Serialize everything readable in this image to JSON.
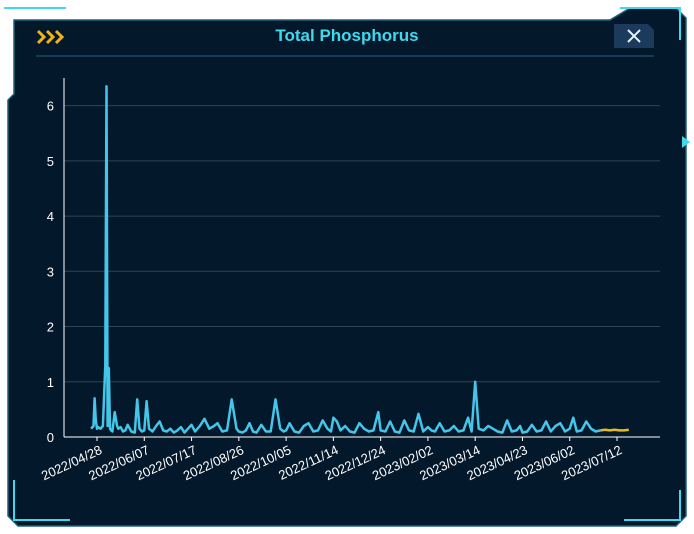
{
  "window": {
    "title": "Total Phosphorus",
    "accent": "#3fd9ee",
    "background": "#04182b"
  },
  "icons": {
    "chevrons": "triple-chevron-right-icon",
    "close": "close-icon"
  },
  "chart_data": {
    "type": "line",
    "title": "Total Phosphorus",
    "xlabel": "",
    "ylabel": "",
    "x_tick_labels": [
      "2022/04/28",
      "2022/06/07",
      "2022/07/17",
      "2022/08/26",
      "2022/10/05",
      "2022/11/14",
      "2022/12/24",
      "2023/02/02",
      "2023/03/14",
      "2023/04/23",
      "2023/06/02",
      "2023/07/12"
    ],
    "y_tick_labels": [
      "0",
      "1",
      "2",
      "3",
      "4",
      "5",
      "6"
    ],
    "ylim": [
      0,
      6.5
    ],
    "grid": "horizontal",
    "series": [
      {
        "color": "#43c6ea",
        "x": [
          "2022/04/23",
          "2022/04/25",
          "2022/04/26",
          "2022/04/27",
          "2022/04/28",
          "2022/04/29",
          "2022/05/01",
          "2022/05/03",
          "2022/05/05",
          "2022/05/06",
          "2022/05/07",
          "2022/05/08",
          "2022/05/09",
          "2022/05/10",
          "2022/05/11",
          "2022/05/13",
          "2022/05/15",
          "2022/05/16",
          "2022/05/18",
          "2022/05/20",
          "2022/05/22",
          "2022/05/24",
          "2022/05/27",
          "2022/05/30",
          "2022/06/01",
          "2022/06/03",
          "2022/06/05",
          "2022/06/07",
          "2022/06/09",
          "2022/06/11",
          "2022/06/14",
          "2022/06/17",
          "2022/06/20",
          "2022/06/23",
          "2022/06/26",
          "2022/06/29",
          "2022/07/02",
          "2022/07/05",
          "2022/07/08",
          "2022/07/11",
          "2022/07/14",
          "2022/07/17",
          "2022/07/20",
          "2022/07/24",
          "2022/07/28",
          "2022/08/01",
          "2022/08/05",
          "2022/08/08",
          "2022/08/12",
          "2022/08/16",
          "2022/08/20",
          "2022/08/24",
          "2022/08/26",
          "2022/08/29",
          "2022/09/01",
          "2022/09/04",
          "2022/09/07",
          "2022/09/10",
          "2022/09/14",
          "2022/09/18",
          "2022/09/22",
          "2022/09/26",
          "2022/09/30",
          "2022/10/03",
          "2022/10/05",
          "2022/10/08",
          "2022/10/12",
          "2022/10/16",
          "2022/10/20",
          "2022/10/24",
          "2022/10/28",
          "2022/11/01",
          "2022/11/05",
          "2022/11/09",
          "2022/11/12",
          "2022/11/14",
          "2022/11/17",
          "2022/11/20",
          "2022/11/24",
          "2022/11/28",
          "2022/12/02",
          "2022/12/06",
          "2022/12/10",
          "2022/12/14",
          "2022/12/18",
          "2022/12/22",
          "2022/12/24",
          "2022/12/28",
          "2023/01/01",
          "2023/01/05",
          "2023/01/09",
          "2023/01/13",
          "2023/01/17",
          "2023/01/21",
          "2023/01/25",
          "2023/01/29",
          "2023/02/02",
          "2023/02/05",
          "2023/02/08",
          "2023/02/12",
          "2023/02/16",
          "2023/02/20",
          "2023/02/24",
          "2023/02/28",
          "2023/03/04",
          "2023/03/08",
          "2023/03/11",
          "2023/03/14",
          "2023/03/17",
          "2023/03/21",
          "2023/03/25",
          "2023/03/29",
          "2023/04/02",
          "2023/04/06",
          "2023/04/10",
          "2023/04/14",
          "2023/04/18",
          "2023/04/21",
          "2023/04/23",
          "2023/04/27",
          "2023/05/01",
          "2023/05/05",
          "2023/05/09",
          "2023/05/13",
          "2023/05/17",
          "2023/05/21",
          "2023/05/25",
          "2023/05/29",
          "2023/06/02",
          "2023/06/05",
          "2023/06/08",
          "2023/06/12",
          "2023/06/16",
          "2023/06/20",
          "2023/06/24",
          "2023/06/28"
        ],
        "values": [
          0.15,
          0.2,
          0.7,
          0.3,
          0.15,
          0.18,
          0.15,
          0.2,
          1.3,
          6.35,
          0.2,
          1.25,
          0.15,
          0.12,
          0.1,
          0.45,
          0.2,
          0.15,
          0.18,
          0.1,
          0.12,
          0.22,
          0.1,
          0.08,
          0.68,
          0.15,
          0.1,
          0.12,
          0.65,
          0.15,
          0.1,
          0.2,
          0.28,
          0.12,
          0.1,
          0.15,
          0.08,
          0.12,
          0.18,
          0.08,
          0.15,
          0.22,
          0.1,
          0.2,
          0.33,
          0.15,
          0.2,
          0.25,
          0.1,
          0.12,
          0.68,
          0.15,
          0.1,
          0.08,
          0.12,
          0.25,
          0.1,
          0.08,
          0.22,
          0.1,
          0.1,
          0.68,
          0.15,
          0.1,
          0.12,
          0.25,
          0.1,
          0.08,
          0.2,
          0.25,
          0.1,
          0.12,
          0.3,
          0.15,
          0.1,
          0.35,
          0.28,
          0.12,
          0.2,
          0.1,
          0.08,
          0.25,
          0.15,
          0.1,
          0.12,
          0.45,
          0.12,
          0.1,
          0.28,
          0.1,
          0.08,
          0.3,
          0.12,
          0.1,
          0.42,
          0.1,
          0.18,
          0.12,
          0.1,
          0.25,
          0.1,
          0.12,
          0.2,
          0.1,
          0.12,
          0.35,
          0.1,
          1.0,
          0.15,
          0.12,
          0.2,
          0.15,
          0.1,
          0.08,
          0.3,
          0.1,
          0.12,
          0.2,
          0.08,
          0.1,
          0.22,
          0.1,
          0.12,
          0.28,
          0.1,
          0.2,
          0.25,
          0.1,
          0.15,
          0.35,
          0.1,
          0.12,
          0.28,
          0.15,
          0.1,
          0.12
        ]
      },
      {
        "color": "#e8b81f",
        "x": [
          "2023/06/28",
          "2023/07/02",
          "2023/07/06",
          "2023/07/10",
          "2023/07/14",
          "2023/07/18",
          "2023/07/22"
        ],
        "values": [
          0.12,
          0.13,
          0.12,
          0.13,
          0.12,
          0.12,
          0.13
        ]
      }
    ]
  }
}
